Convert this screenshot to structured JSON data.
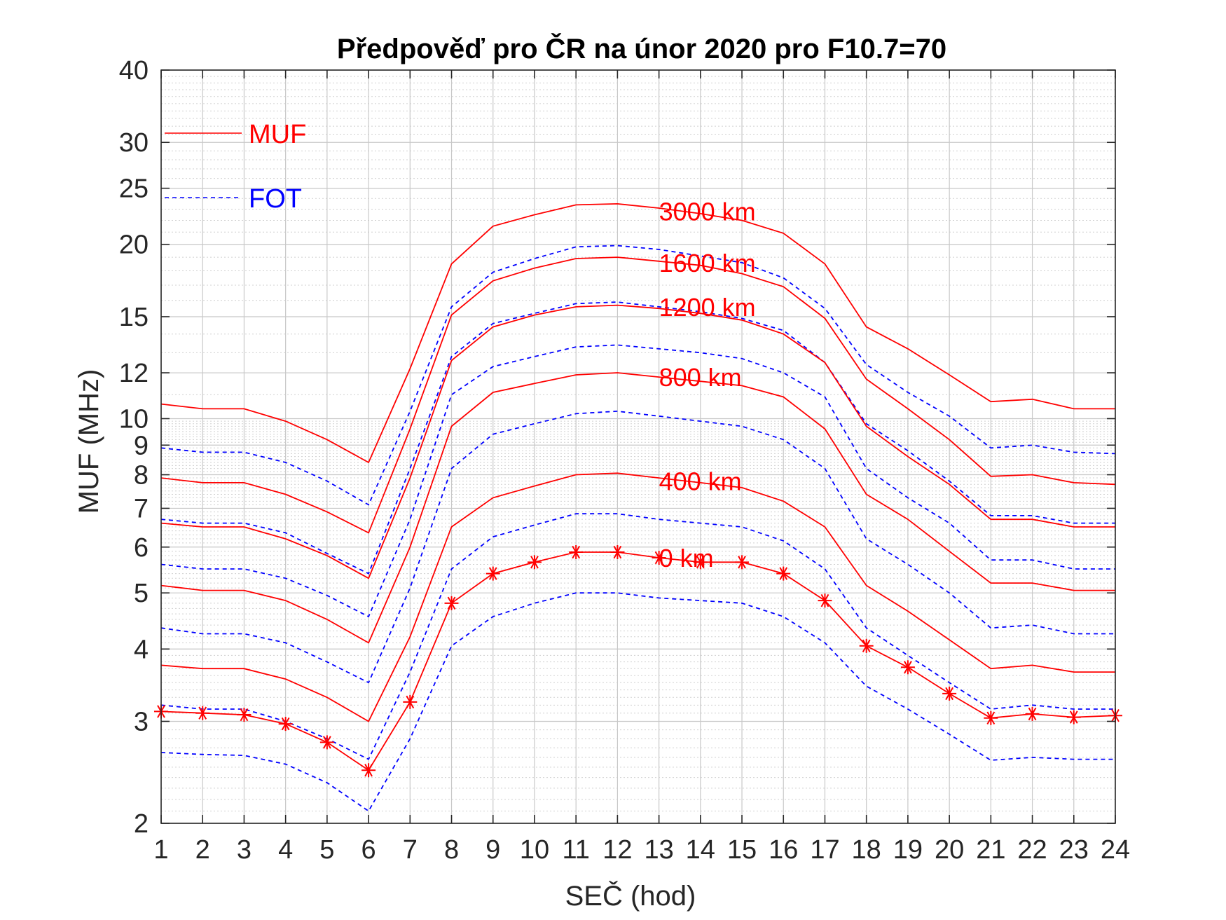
{
  "chart_data": {
    "type": "line",
    "title": "Předpověď pro ČR na únor 2020 pro F10.7=70",
    "xlabel": "SEČ (hod)",
    "ylabel": "MUF (MHz)",
    "xlim": [
      1,
      24
    ],
    "ylim": [
      2,
      40
    ],
    "yscale": "log",
    "grid": "on",
    "legend_position": "top-left",
    "x": [
      1,
      2,
      3,
      4,
      5,
      6,
      7,
      8,
      9,
      10,
      11,
      12,
      13,
      14,
      15,
      16,
      17,
      18,
      19,
      20,
      21,
      22,
      23,
      24
    ],
    "x_ticks": [
      "1",
      "2",
      "3",
      "4",
      "5",
      "6",
      "7",
      "8",
      "9",
      "10",
      "11",
      "12",
      "13",
      "14",
      "15",
      "16",
      "17",
      "18",
      "19",
      "20",
      "21",
      "22",
      "23",
      "24"
    ],
    "y_ticks": [
      {
        "value": 2,
        "label": "2"
      },
      {
        "value": 3,
        "label": "3"
      },
      {
        "value": 4,
        "label": "4"
      },
      {
        "value": 5,
        "label": "5"
      },
      {
        "value": 6,
        "label": "6"
      },
      {
        "value": 7,
        "label": "7"
      },
      {
        "value": 8,
        "label": "8"
      },
      {
        "value": 9,
        "label": "9"
      },
      {
        "value": 10,
        "label": "10"
      },
      {
        "value": 12,
        "label": "12"
      },
      {
        "value": 15,
        "label": "15"
      },
      {
        "value": 20,
        "label": "20"
      },
      {
        "value": 25,
        "label": "25"
      },
      {
        "value": 30,
        "label": "30"
      },
      {
        "value": 40,
        "label": "40"
      }
    ],
    "legend": [
      {
        "label": "MUF",
        "color": "#ff0000",
        "style": "solid"
      },
      {
        "label": "FOT",
        "color": "#0000ff",
        "style": "dashed"
      }
    ],
    "annotations": [
      {
        "text": "3000 km",
        "x": 13,
        "y": 22.8
      },
      {
        "text": "1600 km",
        "x": 13,
        "y": 18.6
      },
      {
        "text": "1200 km",
        "x": 13,
        "y": 15.6
      },
      {
        "text": "800 km",
        "x": 13,
        "y": 11.8
      },
      {
        "text": "400 km",
        "x": 13,
        "y": 7.8
      },
      {
        "text": "0 km",
        "x": 13,
        "y": 5.75
      }
    ],
    "series": [
      {
        "type": "MUF",
        "color": "#ff0000",
        "style": "solid",
        "values": [
          10.6,
          10.4,
          10.4,
          9.9,
          9.2,
          8.4,
          12.2,
          18.5,
          21.5,
          22.5,
          23.4,
          23.5,
          23.1,
          22.6,
          22.0,
          20.9,
          18.5,
          14.4,
          13.2,
          11.9,
          10.7,
          10.8,
          10.4,
          10.4
        ]
      },
      {
        "type": "FOT",
        "color": "#0000ff",
        "style": "dashed",
        "values": [
          8.9,
          8.75,
          8.75,
          8.4,
          7.8,
          7.1,
          10.3,
          15.6,
          17.9,
          18.9,
          19.8,
          19.9,
          19.6,
          19.1,
          18.6,
          17.5,
          15.5,
          12.4,
          11.1,
          10.1,
          8.9,
          9.0,
          8.75,
          8.7
        ]
      },
      {
        "type": "MUF",
        "color": "#ff0000",
        "style": "solid",
        "values": [
          7.9,
          7.75,
          7.75,
          7.4,
          6.9,
          6.35,
          9.6,
          15.1,
          17.3,
          18.2,
          18.9,
          19.0,
          18.7,
          18.4,
          17.8,
          16.9,
          14.9,
          11.7,
          10.4,
          9.2,
          7.95,
          8.0,
          7.75,
          7.7
        ]
      },
      {
        "type": "FOT",
        "color": "#0000ff",
        "style": "dashed",
        "values": [
          6.7,
          6.6,
          6.6,
          6.35,
          5.85,
          5.4,
          8.2,
          12.8,
          14.6,
          15.2,
          15.8,
          15.9,
          15.6,
          15.3,
          14.9,
          14.2,
          12.5,
          9.8,
          8.8,
          7.8,
          6.8,
          6.8,
          6.6,
          6.6
        ]
      },
      {
        "type": "MUF",
        "color": "#ff0000",
        "style": "solid",
        "values": [
          6.6,
          6.5,
          6.5,
          6.2,
          5.8,
          5.3,
          7.9,
          12.6,
          14.4,
          15.1,
          15.6,
          15.7,
          15.5,
          15.2,
          14.8,
          14.0,
          12.5,
          9.7,
          8.6,
          7.7,
          6.7,
          6.7,
          6.5,
          6.5
        ]
      },
      {
        "type": "FOT",
        "color": "#0000ff",
        "style": "dashed",
        "values": [
          5.6,
          5.5,
          5.5,
          5.3,
          4.95,
          4.55,
          6.7,
          11.0,
          12.3,
          12.8,
          13.3,
          13.4,
          13.2,
          13.0,
          12.7,
          12.0,
          10.9,
          8.2,
          7.3,
          6.6,
          5.7,
          5.7,
          5.5,
          5.5
        ]
      },
      {
        "type": "MUF",
        "color": "#ff0000",
        "style": "solid",
        "values": [
          5.15,
          5.05,
          5.05,
          4.85,
          4.5,
          4.1,
          6.0,
          9.7,
          11.1,
          11.5,
          11.9,
          12.0,
          11.8,
          11.6,
          11.4,
          10.9,
          9.6,
          7.4,
          6.7,
          5.9,
          5.2,
          5.2,
          5.05,
          5.05
        ]
      },
      {
        "type": "FOT",
        "color": "#0000ff",
        "style": "dashed",
        "values": [
          4.35,
          4.25,
          4.25,
          4.1,
          3.8,
          3.5,
          5.1,
          8.2,
          9.4,
          9.8,
          10.2,
          10.3,
          10.1,
          9.9,
          9.7,
          9.2,
          8.2,
          6.2,
          5.6,
          5.0,
          4.35,
          4.4,
          4.25,
          4.25
        ]
      },
      {
        "type": "MUF",
        "color": "#ff0000",
        "style": "solid",
        "values": [
          3.75,
          3.7,
          3.7,
          3.55,
          3.3,
          3.0,
          4.2,
          6.5,
          7.3,
          7.65,
          8.0,
          8.05,
          7.9,
          7.75,
          7.6,
          7.2,
          6.5,
          5.15,
          4.65,
          4.15,
          3.7,
          3.75,
          3.65,
          3.65
        ]
      },
      {
        "type": "FOT",
        "color": "#0000ff",
        "style": "dashed",
        "values": [
          3.2,
          3.15,
          3.15,
          3.0,
          2.8,
          2.58,
          3.65,
          5.5,
          6.25,
          6.55,
          6.85,
          6.85,
          6.7,
          6.6,
          6.5,
          6.15,
          5.5,
          4.35,
          3.9,
          3.5,
          3.15,
          3.2,
          3.15,
          3.15
        ]
      },
      {
        "type": "MUF",
        "color": "#ff0000",
        "style": "solid-markers",
        "marker": "asterisk",
        "values": [
          3.12,
          3.1,
          3.08,
          2.97,
          2.76,
          2.47,
          3.24,
          4.8,
          5.4,
          5.65,
          5.88,
          5.88,
          5.75,
          5.65,
          5.65,
          5.4,
          4.85,
          4.05,
          3.72,
          3.35,
          3.04,
          3.09,
          3.05,
          3.07
        ]
      },
      {
        "type": "FOT",
        "color": "#0000ff",
        "style": "dashed",
        "values": [
          2.65,
          2.63,
          2.62,
          2.53,
          2.35,
          2.1,
          2.8,
          4.05,
          4.55,
          4.8,
          5.0,
          5.0,
          4.9,
          4.85,
          4.8,
          4.55,
          4.1,
          3.45,
          3.15,
          2.85,
          2.57,
          2.6,
          2.58,
          2.58
        ]
      }
    ]
  }
}
